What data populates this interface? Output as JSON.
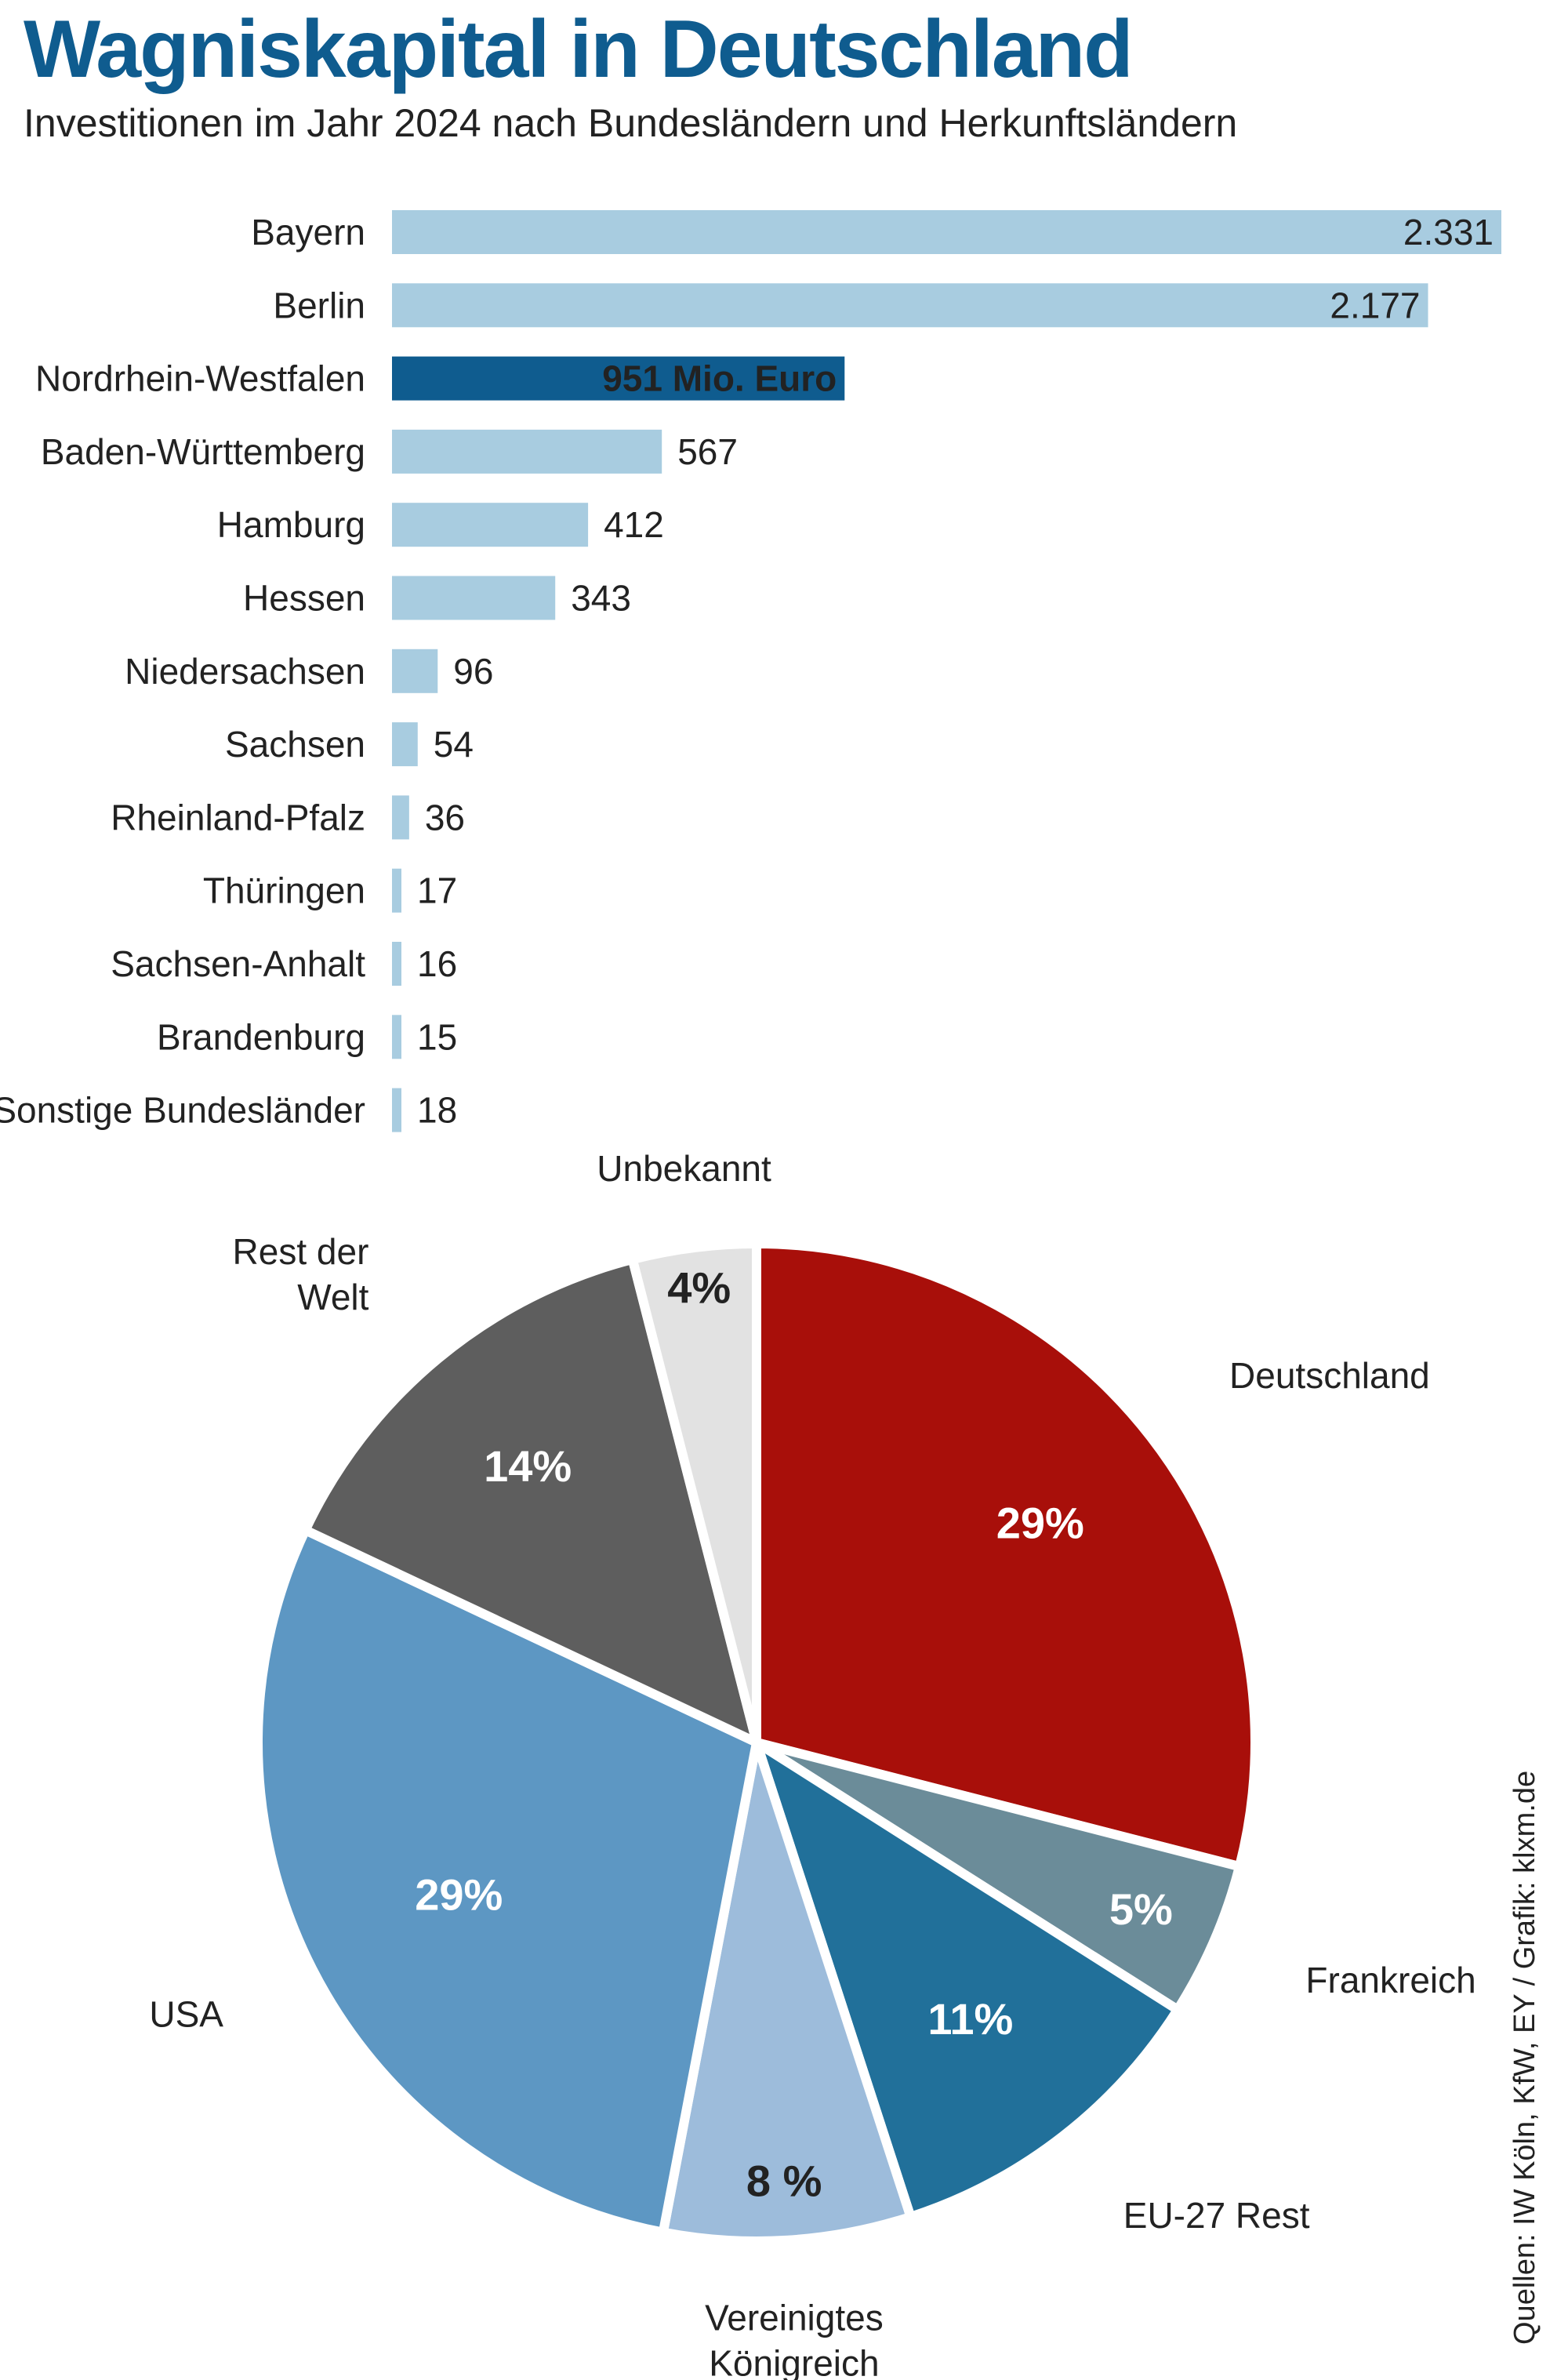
{
  "title": "Wagniskapital in Deutschland",
  "subtitle": "Investitionen im Jahr 2024 nach Bundesländern und Herkunftsländern",
  "source": "Quellen: IW Köln, KfW, EY / Grafik: klxm.de",
  "chart_data": [
    {
      "type": "bar",
      "orientation": "horizontal",
      "unit": "Mio. Euro",
      "categories": [
        "Bayern",
        "Berlin",
        "Nordrhein-Westfalen",
        "Baden-Württemberg",
        "Hamburg",
        "Hessen",
        "Niedersachsen",
        "Sachsen",
        "Rheinland-Pfalz",
        "Thüringen",
        "Sachsen-Anhalt",
        "Brandenburg",
        "Sonstige Bundesländer"
      ],
      "values": [
        2331,
        2177,
        951,
        567,
        412,
        343,
        96,
        54,
        36,
        17,
        16,
        15,
        18
      ],
      "value_labels": [
        "2.331",
        "2.177",
        "951 Mio. Euro",
        "567",
        "412",
        "343",
        "96",
        "54",
        "36",
        "17",
        "16",
        "15",
        "18"
      ],
      "highlight": "Nordrhein-Westfalen",
      "colors": {
        "bar": "#a8cce0",
        "highlight": "#0f5c8f"
      }
    },
    {
      "type": "pie",
      "slices": [
        {
          "label": "Deutschland",
          "value": 29,
          "value_label": "29%",
          "color": "#a80f0a"
        },
        {
          "label": "Frankreich",
          "value": 5,
          "value_label": "5%",
          "color": "#6b8c99"
        },
        {
          "label": "EU-27 Rest",
          "value": 11,
          "value_label": "11%",
          "color": "#21709a"
        },
        {
          "label": "Vereinigtes Königreich",
          "value": 8,
          "value_label": "8 %",
          "color": "#9dbcdb"
        },
        {
          "label": "USA",
          "value": 29,
          "value_label": "29%",
          "color": "#5d97c3"
        },
        {
          "label": "Rest der Welt",
          "value": 14,
          "value_label": "14%",
          "color": "#5e5e5e"
        },
        {
          "label": "Unbekannt",
          "value": 4,
          "value_label": "4%",
          "color": "#e2e2e2"
        }
      ]
    }
  ]
}
